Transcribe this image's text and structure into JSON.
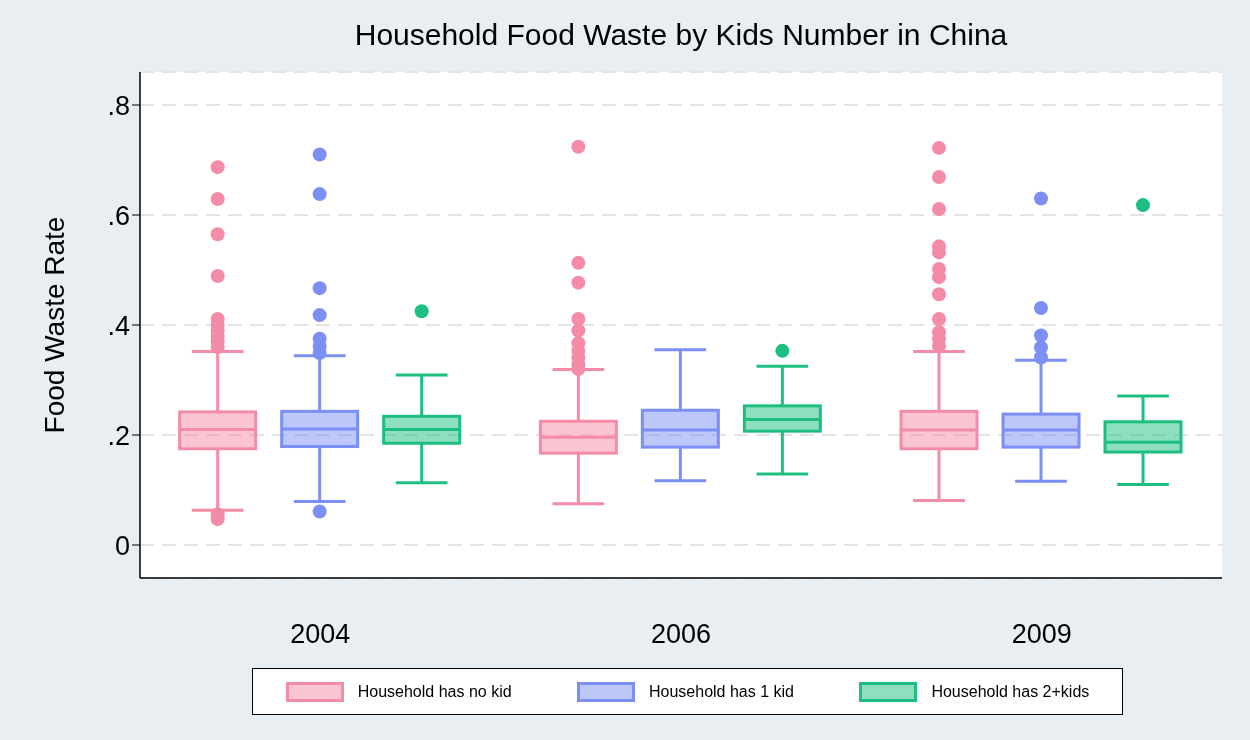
{
  "chart_data": {
    "type": "box",
    "title": "Household Food Waste by Kids Number in China",
    "ylabel": "Food Waste Rate",
    "categories": [
      "2004",
      "2006",
      "2009"
    ],
    "ylim": [
      -0.06,
      0.86
    ],
    "yticks": [
      0,
      {
        "value": 0.2,
        "label": ".2"
      },
      {
        "value": 0.4,
        "label": ".4"
      },
      {
        "value": 0.6,
        "label": ".6"
      },
      {
        "value": 0.8,
        "label": ".8"
      }
    ],
    "grid": "y",
    "legend": "bottom",
    "series": [
      {
        "name": "Household has no kid",
        "color": "#f48ca8",
        "boxes": [
          {
            "low": 0.063,
            "q1": 0.175,
            "median": 0.21,
            "q3": 0.242,
            "high": 0.352,
            "outliers": [
              0.687,
              0.629,
              0.565,
              0.489,
              0.411,
              0.4,
              0.39,
              0.38,
              0.37,
              0.36,
              0.056,
              0.047
            ]
          },
          {
            "low": 0.075,
            "q1": 0.167,
            "median": 0.196,
            "q3": 0.225,
            "high": 0.319,
            "outliers": [
              0.724,
              0.513,
              0.477,
              0.411,
              0.39,
              0.367,
              0.353,
              0.341,
              0.329,
              0.32
            ]
          },
          {
            "low": 0.081,
            "q1": 0.175,
            "median": 0.209,
            "q3": 0.243,
            "high": 0.352,
            "outliers": [
              0.722,
              0.669,
              0.611,
              0.543,
              0.532,
              0.502,
              0.487,
              0.456,
              0.411,
              0.387,
              0.375,
              0.362
            ]
          }
        ]
      },
      {
        "name": "Household has 1 kid",
        "color": "#7b8ff5",
        "boxes": [
          {
            "low": 0.079,
            "q1": 0.179,
            "median": 0.211,
            "q3": 0.243,
            "high": 0.344,
            "outliers": [
              0.71,
              0.638,
              0.467,
              0.418,
              0.375,
              0.362,
              0.349,
              0.061
            ]
          },
          {
            "low": 0.117,
            "q1": 0.178,
            "median": 0.209,
            "q3": 0.245,
            "high": 0.355
          },
          {
            "low": 0.116,
            "q1": 0.178,
            "median": 0.209,
            "q3": 0.238,
            "high": 0.336,
            "outliers": [
              0.63,
              0.431,
              0.381,
              0.359,
              0.341
            ]
          }
        ]
      },
      {
        "name": "Household has 2+kids",
        "color": "#1dbf80",
        "boxes": [
          {
            "low": 0.113,
            "q1": 0.185,
            "median": 0.21,
            "q3": 0.234,
            "high": 0.309,
            "outliers": [
              0.425
            ]
          },
          {
            "low": 0.129,
            "q1": 0.207,
            "median": 0.228,
            "q3": 0.253,
            "high": 0.325,
            "outliers": [
              0.353
            ]
          },
          {
            "low": 0.11,
            "q1": 0.169,
            "median": 0.187,
            "q3": 0.224,
            "high": 0.271,
            "outliers": [
              0.618
            ]
          }
        ]
      }
    ]
  }
}
